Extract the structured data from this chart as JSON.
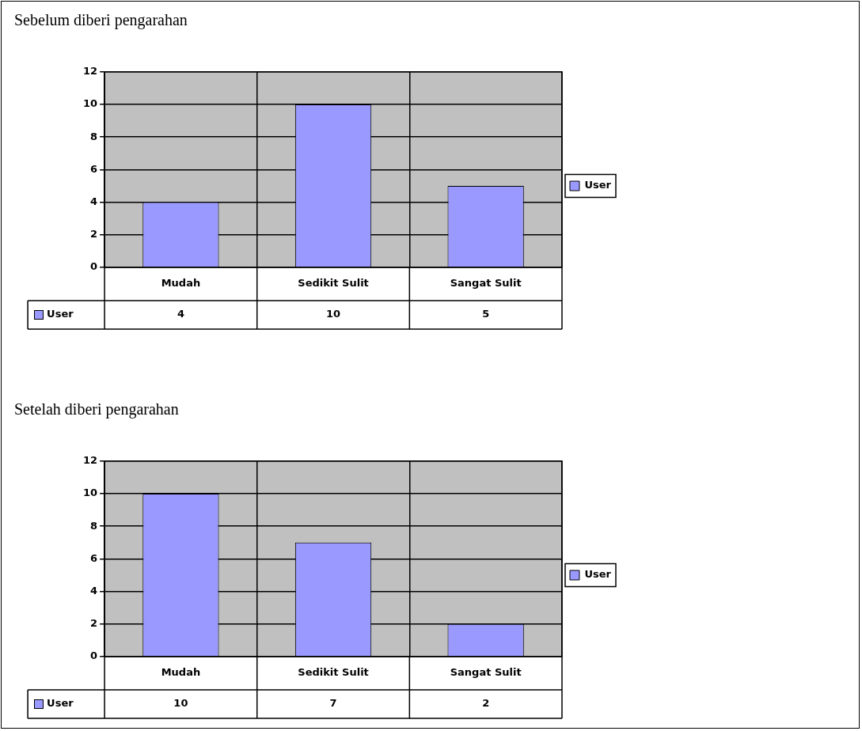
{
  "chart_data": [
    {
      "type": "bar",
      "title": "Sebelum diberi pengarahan",
      "categories": [
        "Mudah",
        "Sedikit Sulit",
        "Sangat Sulit"
      ],
      "series": [
        {
          "name": "User",
          "color": "#9999ff",
          "values": [
            4,
            10,
            5
          ]
        }
      ],
      "ylim": [
        0,
        12
      ],
      "yticks": [
        0,
        2,
        4,
        6,
        8,
        10,
        12
      ],
      "grid": true,
      "legend": "right",
      "data_labels": true
    },
    {
      "type": "bar",
      "title": "Setelah diberi pengarahan",
      "categories": [
        "Mudah",
        "Sedikit Sulit",
        "Sangat Sulit"
      ],
      "series": [
        {
          "name": "User",
          "color": "#9999ff",
          "values": [
            10,
            7,
            2
          ]
        }
      ],
      "ylim": [
        0,
        12
      ],
      "yticks": [
        0,
        2,
        4,
        6,
        8,
        10,
        12
      ],
      "grid": true,
      "legend": "right",
      "data_labels": true
    }
  ]
}
